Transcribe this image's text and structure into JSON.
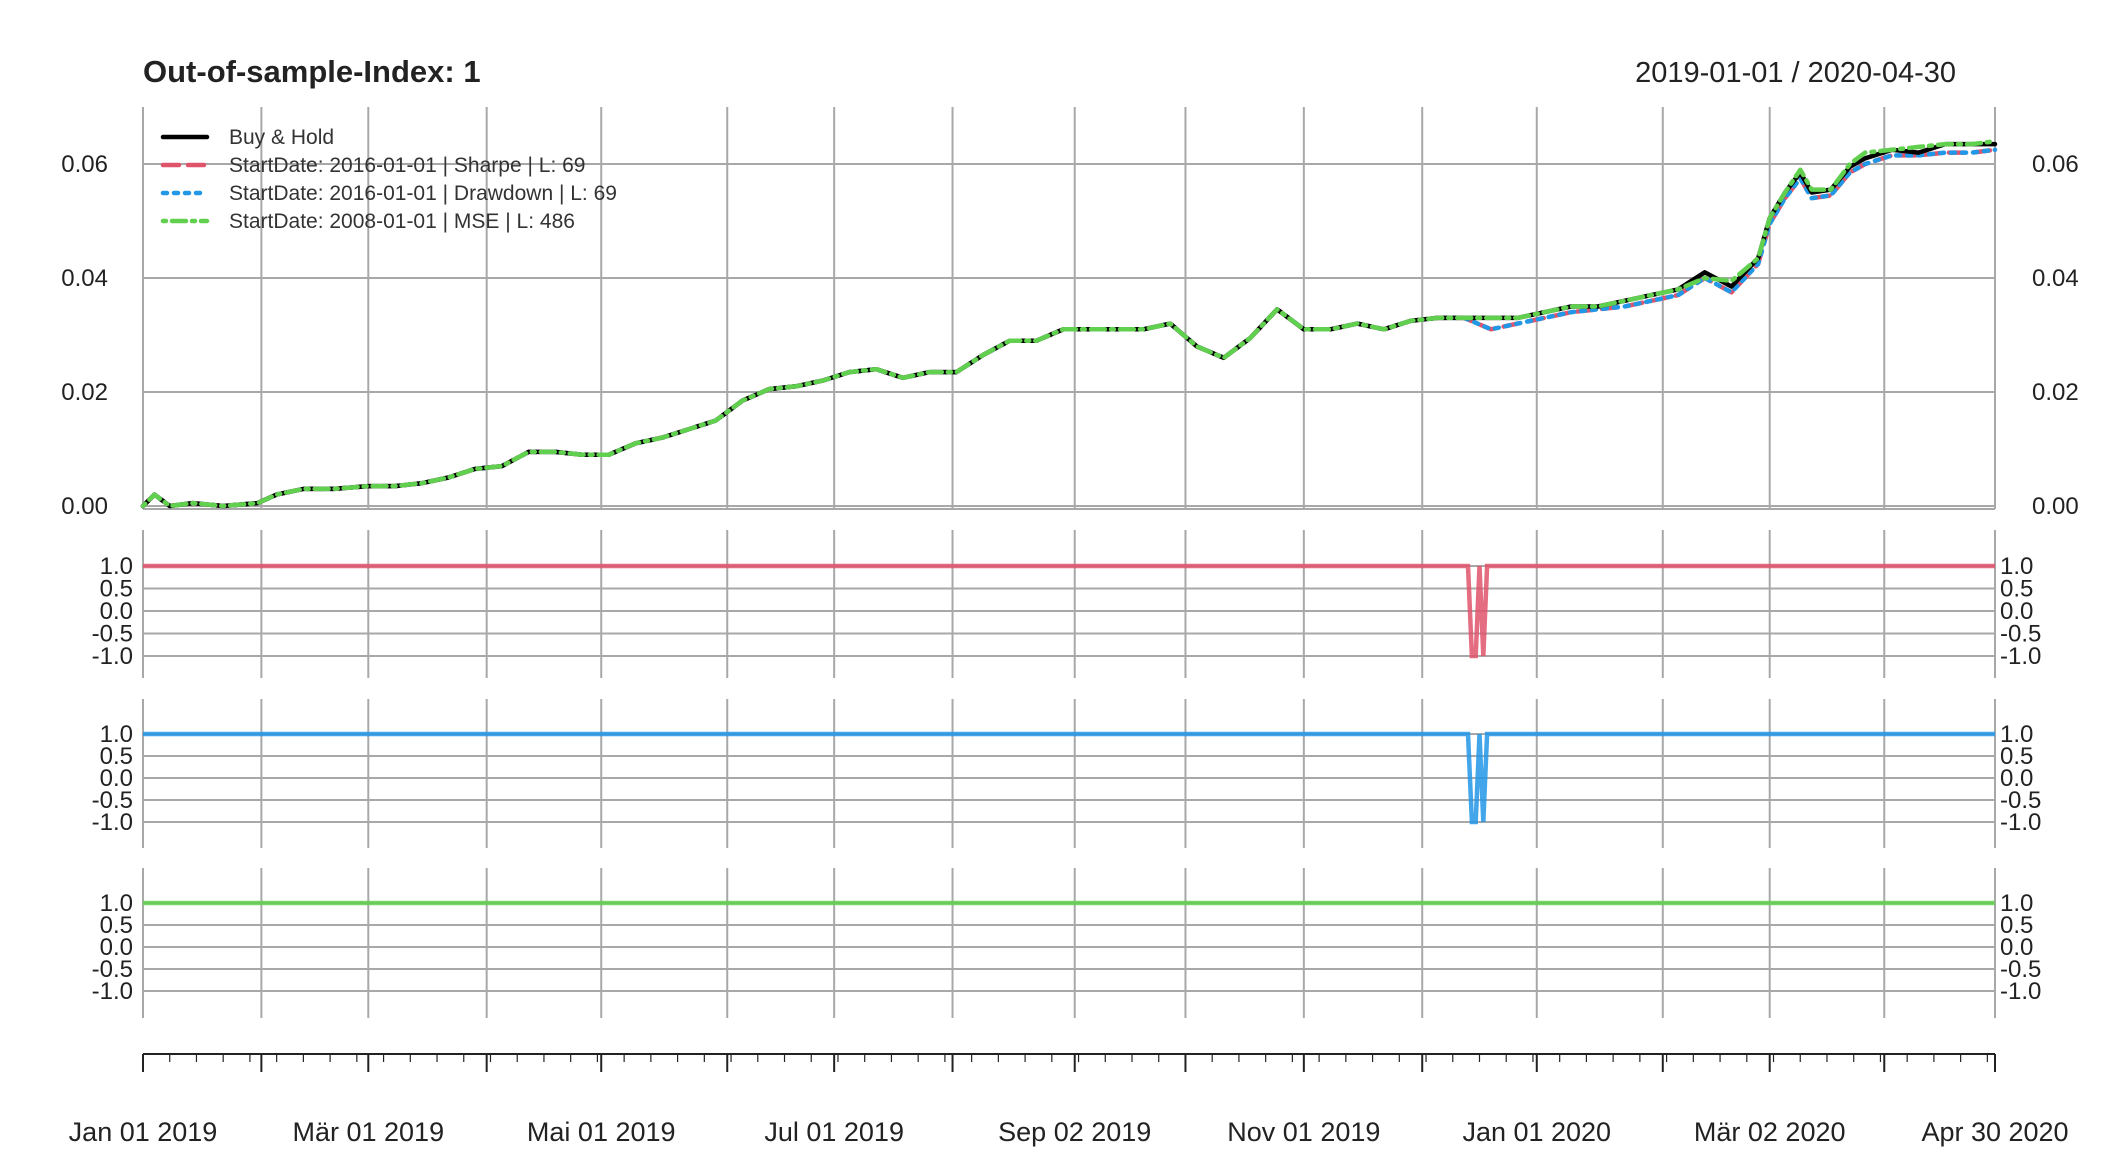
{
  "header": {
    "title": "Out-of-sample-Index:  1",
    "range": "2019-01-01 / 2020-04-30"
  },
  "chart_data": {
    "type": "line",
    "title": "Out-of-sample-Index:  1",
    "date_range": [
      "2019-01-01",
      "2020-04-30"
    ],
    "x_ticks": [
      {
        "date": "2019-01-01",
        "label": "Jan 01 2019"
      },
      {
        "date": "2019-03-01",
        "label": "Mär 01 2019"
      },
      {
        "date": "2019-05-01",
        "label": "Mai 01 2019"
      },
      {
        "date": "2019-07-01",
        "label": "Jul 01 2019"
      },
      {
        "date": "2019-09-02",
        "label": "Sep 02 2019"
      },
      {
        "date": "2019-11-01",
        "label": "Nov 01 2019"
      },
      {
        "date": "2020-01-01",
        "label": "Jan 01 2020"
      },
      {
        "date": "2020-03-02",
        "label": "Mär 02 2020"
      },
      {
        "date": "2020-04-30",
        "label": "Apr 30 2020"
      }
    ],
    "grid_dates": [
      "2019-01-01",
      "2019-02-01",
      "2019-03-01",
      "2019-04-01",
      "2019-05-01",
      "2019-06-03",
      "2019-07-01",
      "2019-08-01",
      "2019-09-02",
      "2019-10-01",
      "2019-11-01",
      "2019-12-02",
      "2020-01-01",
      "2020-02-03",
      "2020-03-02",
      "2020-04-01",
      "2020-04-30"
    ],
    "colors": {
      "buy_hold": "#000000",
      "sharpe": "#DF536B",
      "drawdown": "#2297E6",
      "mse": "#61D04F",
      "grid": "#a8a8a8"
    },
    "main_panel": {
      "ylim": [
        0.0,
        0.07
      ],
      "y_ticks": [
        {
          "value": 0.0,
          "label": "0.00"
        },
        {
          "value": 0.02,
          "label": "0.02"
        },
        {
          "value": 0.04,
          "label": "0.04"
        },
        {
          "value": 0.06,
          "label": "0.06"
        }
      ],
      "legend_position": "top-left",
      "series": [
        {
          "name": "Buy & Hold",
          "style": "solid",
          "x": [
            "2019-01-01",
            "2019-01-04",
            "2019-01-08",
            "2019-01-14",
            "2019-01-22",
            "2019-01-31",
            "2019-02-05",
            "2019-02-12",
            "2019-02-20",
            "2019-03-01",
            "2019-03-08",
            "2019-03-15",
            "2019-03-22",
            "2019-03-29",
            "2019-04-05",
            "2019-04-12",
            "2019-04-19",
            "2019-04-26",
            "2019-05-03",
            "2019-05-10",
            "2019-05-17",
            "2019-05-24",
            "2019-05-31",
            "2019-06-07",
            "2019-06-14",
            "2019-06-21",
            "2019-06-28",
            "2019-07-05",
            "2019-07-12",
            "2019-07-19",
            "2019-07-26",
            "2019-08-02",
            "2019-08-09",
            "2019-08-16",
            "2019-08-23",
            "2019-08-30",
            "2019-09-06",
            "2019-09-13",
            "2019-09-20",
            "2019-09-27",
            "2019-10-04",
            "2019-10-11",
            "2019-10-18",
            "2019-10-25",
            "2019-11-01",
            "2019-11-08",
            "2019-11-15",
            "2019-11-22",
            "2019-11-29",
            "2019-12-06",
            "2019-12-13",
            "2019-12-20",
            "2019-12-27",
            "2020-01-03",
            "2020-01-10",
            "2020-01-17",
            "2020-01-24",
            "2020-01-31",
            "2020-02-07",
            "2020-02-14",
            "2020-02-21",
            "2020-02-28",
            "2020-03-02",
            "2020-03-06",
            "2020-03-10",
            "2020-03-13",
            "2020-03-18",
            "2020-03-23",
            "2020-03-27",
            "2020-04-03",
            "2020-04-10",
            "2020-04-17",
            "2020-04-24",
            "2020-04-30"
          ],
          "values": [
            0.0,
            0.002,
            0.0,
            0.0005,
            0.0,
            0.0005,
            0.002,
            0.003,
            0.003,
            0.0035,
            0.0035,
            0.004,
            0.005,
            0.0065,
            0.007,
            0.0095,
            0.0095,
            0.009,
            0.009,
            0.011,
            0.012,
            0.0135,
            0.015,
            0.0185,
            0.0205,
            0.021,
            0.022,
            0.0235,
            0.024,
            0.0225,
            0.0235,
            0.0235,
            0.0265,
            0.029,
            0.029,
            0.031,
            0.031,
            0.031,
            0.031,
            0.032,
            0.028,
            0.026,
            0.0295,
            0.0345,
            0.031,
            0.031,
            0.032,
            0.031,
            0.0325,
            0.033,
            0.033,
            0.033,
            0.033,
            0.034,
            0.035,
            0.035,
            0.036,
            0.037,
            0.038,
            0.041,
            0.0385,
            0.0435,
            0.0505,
            0.055,
            0.0585,
            0.055,
            0.0555,
            0.0595,
            0.061,
            0.0625,
            0.062,
            0.0635,
            0.0635,
            0.0635
          ]
        },
        {
          "name": "StartDate:  2016-01-01 | Sharpe | L:  69",
          "style": "dashed",
          "x": [
            "2019-01-01",
            "2019-01-04",
            "2019-01-08",
            "2019-01-14",
            "2019-01-22",
            "2019-01-31",
            "2019-02-05",
            "2019-02-12",
            "2019-02-20",
            "2019-03-01",
            "2019-03-08",
            "2019-03-15",
            "2019-03-22",
            "2019-03-29",
            "2019-04-05",
            "2019-04-12",
            "2019-04-19",
            "2019-04-26",
            "2019-05-03",
            "2019-05-10",
            "2019-05-17",
            "2019-05-24",
            "2019-05-31",
            "2019-06-07",
            "2019-06-14",
            "2019-06-21",
            "2019-06-28",
            "2019-07-05",
            "2019-07-12",
            "2019-07-19",
            "2019-07-26",
            "2019-08-02",
            "2019-08-09",
            "2019-08-16",
            "2019-08-23",
            "2019-08-30",
            "2019-09-06",
            "2019-09-13",
            "2019-09-20",
            "2019-09-27",
            "2019-10-04",
            "2019-10-11",
            "2019-10-18",
            "2019-10-25",
            "2019-11-01",
            "2019-11-08",
            "2019-11-15",
            "2019-11-22",
            "2019-11-29",
            "2019-12-06",
            "2019-12-13",
            "2019-12-20",
            "2019-12-27",
            "2020-01-03",
            "2020-01-10",
            "2020-01-17",
            "2020-01-24",
            "2020-01-31",
            "2020-02-07",
            "2020-02-14",
            "2020-02-21",
            "2020-02-28",
            "2020-03-02",
            "2020-03-06",
            "2020-03-10",
            "2020-03-13",
            "2020-03-18",
            "2020-03-23",
            "2020-03-27",
            "2020-04-03",
            "2020-04-10",
            "2020-04-17",
            "2020-04-24",
            "2020-04-30"
          ],
          "values": [
            0.0,
            0.002,
            0.0,
            0.0005,
            0.0,
            0.0005,
            0.002,
            0.003,
            0.003,
            0.0035,
            0.0035,
            0.004,
            0.005,
            0.0065,
            0.007,
            0.0095,
            0.0095,
            0.009,
            0.009,
            0.011,
            0.012,
            0.0135,
            0.015,
            0.0185,
            0.0205,
            0.021,
            0.022,
            0.0235,
            0.024,
            0.0225,
            0.0235,
            0.0235,
            0.0265,
            0.029,
            0.029,
            0.031,
            0.031,
            0.031,
            0.031,
            0.032,
            0.028,
            0.026,
            0.0295,
            0.0345,
            0.031,
            0.031,
            0.032,
            0.031,
            0.0325,
            0.033,
            0.033,
            0.031,
            0.032,
            0.033,
            0.034,
            0.0345,
            0.035,
            0.036,
            0.037,
            0.04,
            0.0375,
            0.0425,
            0.0495,
            0.054,
            0.0575,
            0.054,
            0.0545,
            0.0585,
            0.06,
            0.0615,
            0.0615,
            0.062,
            0.062,
            0.0625
          ]
        },
        {
          "name": "StartDate:  2016-01-01 | Drawdown | L:  69",
          "style": "dotted",
          "x": [
            "2019-01-01",
            "2019-01-04",
            "2019-01-08",
            "2019-01-14",
            "2019-01-22",
            "2019-01-31",
            "2019-02-05",
            "2019-02-12",
            "2019-02-20",
            "2019-03-01",
            "2019-03-08",
            "2019-03-15",
            "2019-03-22",
            "2019-03-29",
            "2019-04-05",
            "2019-04-12",
            "2019-04-19",
            "2019-04-26",
            "2019-05-03",
            "2019-05-10",
            "2019-05-17",
            "2019-05-24",
            "2019-05-31",
            "2019-06-07",
            "2019-06-14",
            "2019-06-21",
            "2019-06-28",
            "2019-07-05",
            "2019-07-12",
            "2019-07-19",
            "2019-07-26",
            "2019-08-02",
            "2019-08-09",
            "2019-08-16",
            "2019-08-23",
            "2019-08-30",
            "2019-09-06",
            "2019-09-13",
            "2019-09-20",
            "2019-09-27",
            "2019-10-04",
            "2019-10-11",
            "2019-10-18",
            "2019-10-25",
            "2019-11-01",
            "2019-11-08",
            "2019-11-15",
            "2019-11-22",
            "2019-11-29",
            "2019-12-06",
            "2019-12-13",
            "2019-12-20",
            "2019-12-27",
            "2020-01-03",
            "2020-01-10",
            "2020-01-17",
            "2020-01-24",
            "2020-01-31",
            "2020-02-07",
            "2020-02-14",
            "2020-02-21",
            "2020-02-28",
            "2020-03-02",
            "2020-03-06",
            "2020-03-10",
            "2020-03-13",
            "2020-03-18",
            "2020-03-23",
            "2020-03-27",
            "2020-04-03",
            "2020-04-10",
            "2020-04-17",
            "2020-04-24",
            "2020-04-30"
          ],
          "values": [
            0.0,
            0.002,
            0.0,
            0.0005,
            0.0,
            0.0005,
            0.002,
            0.003,
            0.003,
            0.0035,
            0.0035,
            0.004,
            0.005,
            0.0065,
            0.007,
            0.0095,
            0.0095,
            0.009,
            0.009,
            0.011,
            0.012,
            0.0135,
            0.015,
            0.0185,
            0.0205,
            0.021,
            0.022,
            0.0235,
            0.024,
            0.0225,
            0.0235,
            0.0235,
            0.0265,
            0.029,
            0.029,
            0.031,
            0.031,
            0.031,
            0.031,
            0.032,
            0.028,
            0.026,
            0.0295,
            0.0345,
            0.031,
            0.031,
            0.032,
            0.031,
            0.0325,
            0.033,
            0.033,
            0.031,
            0.032,
            0.033,
            0.034,
            0.0345,
            0.035,
            0.036,
            0.037,
            0.04,
            0.0375,
            0.0425,
            0.0495,
            0.054,
            0.0575,
            0.054,
            0.0545,
            0.0585,
            0.06,
            0.0615,
            0.0615,
            0.062,
            0.062,
            0.0625
          ]
        },
        {
          "name": "StartDate:  2008-01-01 | MSE | L:  486",
          "style": "dotdash",
          "x": [
            "2019-01-01",
            "2019-01-04",
            "2019-01-08",
            "2019-01-14",
            "2019-01-22",
            "2019-01-31",
            "2019-02-05",
            "2019-02-12",
            "2019-02-20",
            "2019-03-01",
            "2019-03-08",
            "2019-03-15",
            "2019-03-22",
            "2019-03-29",
            "2019-04-05",
            "2019-04-12",
            "2019-04-19",
            "2019-04-26",
            "2019-05-03",
            "2019-05-10",
            "2019-05-17",
            "2019-05-24",
            "2019-05-31",
            "2019-06-07",
            "2019-06-14",
            "2019-06-21",
            "2019-06-28",
            "2019-07-05",
            "2019-07-12",
            "2019-07-19",
            "2019-07-26",
            "2019-08-02",
            "2019-08-09",
            "2019-08-16",
            "2019-08-23",
            "2019-08-30",
            "2019-09-06",
            "2019-09-13",
            "2019-09-20",
            "2019-09-27",
            "2019-10-04",
            "2019-10-11",
            "2019-10-18",
            "2019-10-25",
            "2019-11-01",
            "2019-11-08",
            "2019-11-15",
            "2019-11-22",
            "2019-11-29",
            "2019-12-06",
            "2019-12-13",
            "2019-12-20",
            "2019-12-27",
            "2020-01-03",
            "2020-01-10",
            "2020-01-17",
            "2020-01-24",
            "2020-01-31",
            "2020-02-07",
            "2020-02-14",
            "2020-02-21",
            "2020-02-28",
            "2020-03-02",
            "2020-03-06",
            "2020-03-10",
            "2020-03-13",
            "2020-03-18",
            "2020-03-23",
            "2020-03-27",
            "2020-04-03",
            "2020-04-10",
            "2020-04-17",
            "2020-04-24",
            "2020-04-30"
          ],
          "values": [
            0.0,
            0.002,
            0.0,
            0.0005,
            0.0,
            0.0005,
            0.002,
            0.003,
            0.003,
            0.0035,
            0.0035,
            0.004,
            0.005,
            0.0065,
            0.007,
            0.0095,
            0.0095,
            0.009,
            0.009,
            0.011,
            0.012,
            0.0135,
            0.015,
            0.0185,
            0.0205,
            0.021,
            0.022,
            0.0235,
            0.024,
            0.0225,
            0.0235,
            0.0235,
            0.0265,
            0.029,
            0.029,
            0.031,
            0.031,
            0.031,
            0.031,
            0.032,
            0.028,
            0.026,
            0.0295,
            0.0345,
            0.031,
            0.031,
            0.032,
            0.031,
            0.0325,
            0.033,
            0.033,
            0.033,
            0.033,
            0.034,
            0.035,
            0.035,
            0.036,
            0.037,
            0.038,
            0.04,
            0.0395,
            0.0435,
            0.0505,
            0.055,
            0.059,
            0.0555,
            0.0555,
            0.06,
            0.062,
            0.0625,
            0.063,
            0.0635,
            0.0635,
            0.064
          ]
        }
      ]
    },
    "position_panels": [
      {
        "name": "StartDate:  2016-01-01 | Sharpe | L:  69",
        "color_key": "sharpe",
        "ylim": [
          -1.2,
          1.2
        ],
        "y_ticks": [
          {
            "value": 1.0,
            "label": "1.0"
          },
          {
            "value": 0.5,
            "label": "0.5"
          },
          {
            "value": 0.0,
            "label": "0.0"
          },
          {
            "value": -0.5,
            "label": "-0.5"
          },
          {
            "value": -1.0,
            "label": "-1.0"
          }
        ],
        "x": [
          "2019-01-01",
          "2019-12-14",
          "2019-12-15",
          "2019-12-16",
          "2019-12-17",
          "2019-12-18",
          "2019-12-19",
          "2020-04-30"
        ],
        "values": [
          1.0,
          1.0,
          -1.0,
          -1.0,
          1.0,
          -1.0,
          1.0,
          1.0
        ]
      },
      {
        "name": "StartDate:  2016-01-01 | Drawdown | L:  69",
        "color_key": "drawdown",
        "ylim": [
          -1.2,
          1.2
        ],
        "y_ticks": [
          {
            "value": 1.0,
            "label": "1.0"
          },
          {
            "value": 0.5,
            "label": "0.5"
          },
          {
            "value": 0.0,
            "label": "0.0"
          },
          {
            "value": -0.5,
            "label": "-0.5"
          },
          {
            "value": -1.0,
            "label": "-1.0"
          }
        ],
        "x": [
          "2019-01-01",
          "2019-12-14",
          "2019-12-15",
          "2019-12-16",
          "2019-12-17",
          "2019-12-18",
          "2019-12-19",
          "2020-04-30"
        ],
        "values": [
          1.0,
          1.0,
          -1.0,
          -1.0,
          1.0,
          -1.0,
          1.0,
          1.0
        ]
      },
      {
        "name": "StartDate:  2008-01-01 | MSE | L:  486",
        "color_key": "mse",
        "ylim": [
          -1.2,
          1.2
        ],
        "y_ticks": [
          {
            "value": 1.0,
            "label": "1.0"
          },
          {
            "value": 0.5,
            "label": "0.5"
          },
          {
            "value": 0.0,
            "label": "0.0"
          },
          {
            "value": -0.5,
            "label": "-0.5"
          },
          {
            "value": -1.0,
            "label": "-1.0"
          }
        ],
        "x": [
          "2019-01-01",
          "2020-04-30"
        ],
        "values": [
          1.0,
          1.0
        ]
      }
    ]
  }
}
